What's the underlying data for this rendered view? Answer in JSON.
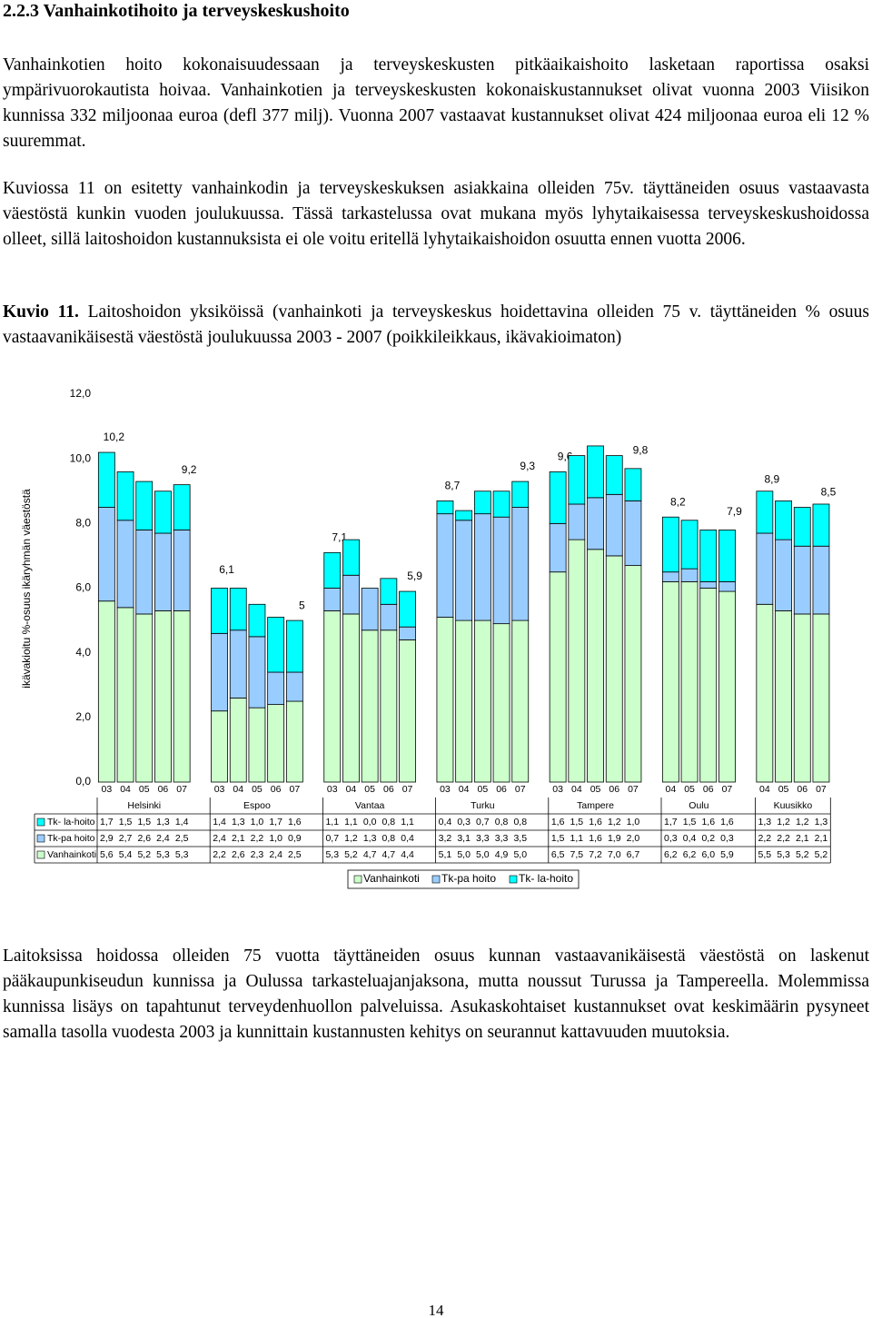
{
  "heading": "2.2.3 Vanhainkotihoito ja terveyskeskushoito",
  "paragraphs": [
    "Vanhainkotien hoito kokonaisuudessaan ja terveyskeskusten pitkäaikaishoito lasketaan raportissa osaksi ympärivuorokautista hoivaa. Vanhainkotien ja terveyskeskusten kokonaiskustannukset olivat vuonna 2003 Viisikon kunnissa 332 miljoonaa euroa (defl 377 milj). Vuonna 2007 vastaavat kustannukset olivat 424 miljoonaa euroa eli 12 % suuremmat.",
    "Kuviossa 11 on esitetty vanhainkodin ja terveyskeskuksen asiakkaina olleiden 75v. täyttäneiden osuus vastaavasta väestöstä kunkin vuoden joulukuussa. Tässä tarkastelussa ovat mukana myös lyhytaikaisessa terveyskeskushoidossa olleet, sillä laitoshoidon kustannuksista ei ole voitu eritellä lyhytaikaishoidon osuutta ennen vuotta 2006."
  ],
  "caption": {
    "label": "Kuvio 11.",
    "text": "Laitoshoidon yksiköissä (vanhainkoti ja terveyskeskus hoidettavina olleiden 75 v. täyttäneiden % osuus vastaavanikäisestä väestöstä joulukuussa 2003 - 2007 (poikkileikkaus, ikävakioimaton)"
  },
  "chart_data": {
    "type": "stacked-bar",
    "y_label": "ikävakioitu %-osuus ikäryhmän väestöstä",
    "ylim": [
      0,
      12
    ],
    "yticks": [
      {
        "value": 0,
        "label": "0,0"
      },
      {
        "value": 2,
        "label": "2,0"
      },
      {
        "value": 4,
        "label": "4,0"
      },
      {
        "value": 6,
        "label": "6,0"
      },
      {
        "value": 8,
        "label": "8,0"
      },
      {
        "value": 10,
        "label": "10,0"
      },
      {
        "value": 12,
        "label": "12,0"
      }
    ],
    "groups": [
      {
        "name": "Helsinki",
        "categories": [
          "03",
          "04",
          "05",
          "06",
          "07"
        ]
      },
      {
        "name": "Espoo",
        "categories": [
          "03",
          "04",
          "05",
          "06",
          "07"
        ]
      },
      {
        "name": "Vantaa",
        "categories": [
          "03",
          "04",
          "05",
          "06",
          "07"
        ]
      },
      {
        "name": "Turku",
        "categories": [
          "03",
          "04",
          "05",
          "06",
          "07"
        ]
      },
      {
        "name": "Tampere",
        "categories": [
          "03",
          "04",
          "05",
          "06",
          "07"
        ]
      },
      {
        "name": "Oulu",
        "categories": [
          "04",
          "05",
          "06",
          "07"
        ]
      },
      {
        "name": "Kuusikko",
        "categories": [
          "04",
          "05",
          "06",
          "07"
        ]
      }
    ],
    "series": [
      {
        "name": "Vanhainkoti",
        "color": "#ccffcc",
        "values": [
          5.6,
          5.4,
          5.2,
          5.3,
          5.3,
          2.2,
          2.6,
          2.3,
          2.4,
          2.5,
          5.3,
          5.2,
          4.7,
          4.7,
          4.4,
          5.1,
          5.0,
          5.0,
          4.9,
          5.0,
          6.5,
          7.5,
          7.2,
          7.0,
          6.7,
          6.2,
          6.2,
          6.0,
          5.9,
          5.5,
          5.3,
          5.2,
          5.2
        ],
        "value_labels": [
          "5,6",
          "5,4",
          "5,2",
          "5,3",
          "5,3",
          "2,2",
          "2,6",
          "2,3",
          "2,4",
          "2,5",
          "5,3",
          "5,2",
          "4,7",
          "4,7",
          "4,4",
          "5,1",
          "5,0",
          "5,0",
          "4,9",
          "5,0",
          "6,5",
          "7,5",
          "7,2",
          "7,0",
          "6,7",
          "6,2",
          "6,2",
          "6,0",
          "5,9",
          "5,5",
          "5,3",
          "5,2",
          "5,2"
        ]
      },
      {
        "name": "Tk-pa hoito",
        "color": "#99ccff",
        "values": [
          2.9,
          2.7,
          2.6,
          2.4,
          2.5,
          2.4,
          2.1,
          2.2,
          1.0,
          0.9,
          0.7,
          1.2,
          1.3,
          0.8,
          0.4,
          3.2,
          3.1,
          3.3,
          3.3,
          3.5,
          1.5,
          1.1,
          1.6,
          1.9,
          2.0,
          0.3,
          0.4,
          0.2,
          0.3,
          2.2,
          2.2,
          2.1,
          2.1
        ],
        "value_labels": [
          "2,9",
          "2,7",
          "2,6",
          "2,4",
          "2,5",
          "2,4",
          "2,1",
          "2,2",
          "1,0",
          "0,9",
          "0,7",
          "1,2",
          "1,3",
          "0,8",
          "0,4",
          "3,2",
          "3,1",
          "3,3",
          "3,3",
          "3,5",
          "1,5",
          "1,1",
          "1,6",
          "1,9",
          "2,0",
          "0,3",
          "0,4",
          "0,2",
          "0,3",
          "2,2",
          "2,2",
          "2,1",
          "2,1"
        ]
      },
      {
        "name": "Tk- la-hoito",
        "color": "#00ffff",
        "values": [
          1.7,
          1.5,
          1.5,
          1.3,
          1.4,
          1.4,
          1.3,
          1.0,
          1.7,
          1.6,
          1.1,
          1.1,
          0.0,
          0.8,
          1.1,
          0.4,
          0.3,
          0.7,
          0.8,
          0.8,
          1.6,
          1.5,
          1.6,
          1.2,
          1.0,
          1.7,
          1.5,
          1.6,
          1.6,
          1.3,
          1.2,
          1.2,
          1.3
        ],
        "value_labels": [
          "1,7",
          "1,5",
          "1,5",
          "1,3",
          "1,4",
          "1,4",
          "1,3",
          "1,0",
          "1,7",
          "1,6",
          "1,1",
          "1,1",
          "0,0",
          "0,8",
          "1,1",
          "0,4",
          "0,3",
          "0,7",
          "0,8",
          "0,8",
          "1,6",
          "1,5",
          "1,6",
          "1,2",
          "1,0",
          "1,7",
          "1,5",
          "1,6",
          "1,6",
          "1,3",
          "1,2",
          "1,2",
          "1,3"
        ]
      }
    ],
    "totals": [
      10.2,
      null,
      null,
      null,
      9.2,
      6.1,
      null,
      null,
      null,
      5,
      7.1,
      null,
      null,
      null,
      5.9,
      8.7,
      null,
      null,
      null,
      9.3,
      9.6,
      null,
      null,
      null,
      9.8,
      8.2,
      null,
      null,
      7.9,
      8.9,
      null,
      null,
      8.5
    ],
    "total_labels": [
      "10,2",
      null,
      null,
      null,
      "9,2",
      "6,1",
      null,
      null,
      null,
      "5",
      "7,1",
      null,
      null,
      null,
      "5,9",
      "8,7",
      null,
      null,
      null,
      "9,3",
      "9,6",
      null,
      null,
      null,
      "9,8",
      "8,2",
      null,
      null,
      "7,9",
      "8,9",
      null,
      null,
      "8,5"
    ]
  },
  "closing_paragraph": "Laitoksissa hoidossa olleiden 75 vuotta täyttäneiden osuus kunnan vastaavanikäisestä väestöstä on laskenut pääkaupunkiseudun kunnissa ja Oulussa tarkasteluajanjaksona, mutta noussut Turussa ja Tampereella. Molemmissa kunnissa lisäys on tapahtunut terveydenhuollon palveluissa. Asukaskohtaiset kustannukset ovat keskimäärin pysyneet samalla tasolla vuodesta 2003 ja kunnittain kustannusten kehitys on seurannut kattavuuden muutoksia.",
  "page_number": "14"
}
